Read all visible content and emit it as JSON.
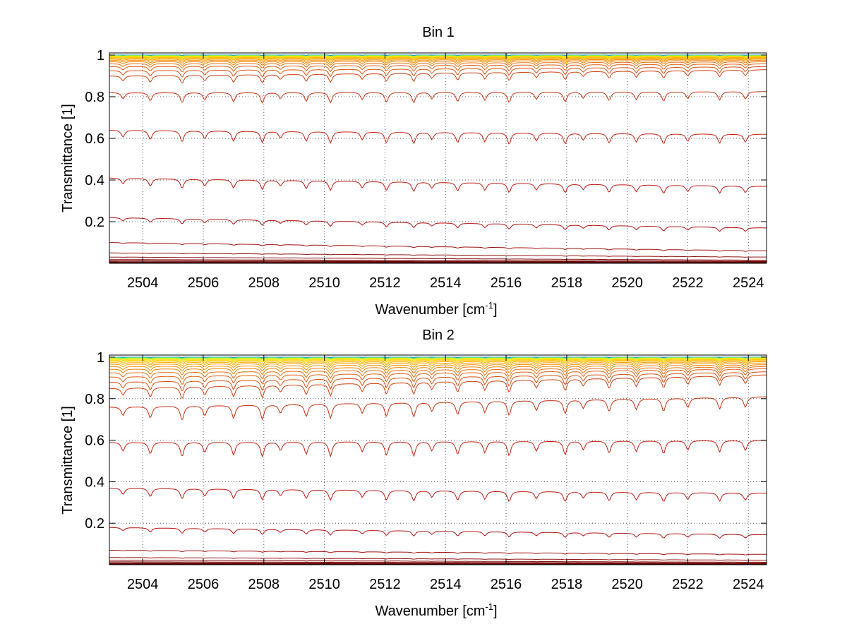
{
  "chart_data": [
    {
      "type": "line",
      "title": "Bin 1",
      "xlabel": "Wavenumber [cm",
      "xlabel_sup": "-1",
      "xlabel_end": "]",
      "ylabel": "Transmittance [1]",
      "xlim": [
        2502.9,
        2524.6
      ],
      "ylim": [
        0.0,
        1.01
      ],
      "xticks": [
        "2504",
        "2506",
        "2508",
        "2510",
        "2512",
        "2514",
        "2516",
        "2518",
        "2520",
        "2522",
        "2524"
      ],
      "yticks": [
        "0.2",
        "0.4",
        "0.6",
        "0.8",
        "1"
      ],
      "grid": true,
      "legend": "none",
      "series_count": 36,
      "series_levels": [
        {
          "start": 1.0,
          "end": 1.0,
          "depth": 0.002,
          "color": "#00308f"
        },
        {
          "start": 1.0,
          "end": 1.0,
          "depth": 0.002,
          "color": "#0060c0"
        },
        {
          "start": 0.999,
          "end": 0.999,
          "depth": 0.002,
          "color": "#0090e0"
        },
        {
          "start": 0.999,
          "end": 0.999,
          "depth": 0.003,
          "color": "#10b8d8"
        },
        {
          "start": 0.998,
          "end": 0.998,
          "depth": 0.003,
          "color": "#30d0b0"
        },
        {
          "start": 0.998,
          "end": 0.998,
          "depth": 0.003,
          "color": "#60e080"
        },
        {
          "start": 0.997,
          "end": 0.997,
          "depth": 0.003,
          "color": "#90ee50"
        },
        {
          "start": 0.996,
          "end": 0.996,
          "depth": 0.004,
          "color": "#c0f030"
        },
        {
          "start": 0.995,
          "end": 0.995,
          "depth": 0.004,
          "color": "#e8f020"
        },
        {
          "start": 0.993,
          "end": 0.994,
          "depth": 0.005,
          "color": "#f8e000"
        },
        {
          "start": 0.991,
          "end": 0.992,
          "depth": 0.006,
          "color": "#ffd000"
        },
        {
          "start": 0.988,
          "end": 0.99,
          "depth": 0.008,
          "color": "#ffc000"
        },
        {
          "start": 0.985,
          "end": 0.987,
          "depth": 0.01,
          "color": "#ffb000"
        },
        {
          "start": 0.98,
          "end": 0.984,
          "depth": 0.012,
          "color": "#ffa000"
        },
        {
          "start": 0.975,
          "end": 0.98,
          "depth": 0.015,
          "color": "#f89000"
        },
        {
          "start": 0.968,
          "end": 0.975,
          "depth": 0.018,
          "color": "#f08000"
        },
        {
          "start": 0.958,
          "end": 0.968,
          "depth": 0.022,
          "color": "#e87010"
        },
        {
          "start": 0.945,
          "end": 0.958,
          "depth": 0.028,
          "color": "#e06010"
        },
        {
          "start": 0.925,
          "end": 0.945,
          "depth": 0.034,
          "color": "#d85010"
        },
        {
          "start": 0.9,
          "end": 0.93,
          "depth": 0.04,
          "color": "#d04010"
        },
        {
          "start": 0.82,
          "end": 0.825,
          "depth": 0.05,
          "color": "#c83010"
        },
        {
          "start": 0.64,
          "end": 0.62,
          "depth": 0.055,
          "color": "#c82010"
        },
        {
          "start": 0.41,
          "end": 0.37,
          "depth": 0.045,
          "color": "#c01810"
        },
        {
          "start": 0.22,
          "end": 0.17,
          "depth": 0.025,
          "color": "#b01010"
        },
        {
          "start": 0.1,
          "end": 0.06,
          "depth": 0.006,
          "color": "#a01010"
        },
        {
          "start": 0.05,
          "end": 0.03,
          "depth": 0.002,
          "color": "#901010"
        },
        {
          "start": 0.03,
          "end": 0.015,
          "depth": 0.001,
          "color": "#881010"
        },
        {
          "start": 0.018,
          "end": 0.01,
          "depth": 0.0,
          "color": "#801010"
        },
        {
          "start": 0.012,
          "end": 0.007,
          "depth": 0.0,
          "color": "#780808"
        },
        {
          "start": 0.008,
          "end": 0.005,
          "depth": 0.0,
          "color": "#700808"
        },
        {
          "start": 0.005,
          "end": 0.004,
          "depth": 0.0,
          "color": "#680404"
        },
        {
          "start": 0.004,
          "end": 0.003,
          "depth": 0.0,
          "color": "#600404"
        },
        {
          "start": 0.003,
          "end": 0.002,
          "depth": 0.0,
          "color": "#600000"
        },
        {
          "start": 0.002,
          "end": 0.002,
          "depth": 0.0,
          "color": "#580000"
        },
        {
          "start": 0.001,
          "end": 0.001,
          "depth": 0.0,
          "color": "#580000"
        },
        {
          "start": 0.001,
          "end": 0.001,
          "depth": 0.0,
          "color": "#500000"
        }
      ]
    },
    {
      "type": "line",
      "title": "Bin 2",
      "xlabel": "Wavenumber [cm",
      "xlabel_sup": "-1",
      "xlabel_end": "]",
      "ylabel": "Transmittance [1]",
      "xlim": [
        2502.9,
        2524.6
      ],
      "ylim": [
        0.0,
        1.01
      ],
      "xticks": [
        "2504",
        "2506",
        "2508",
        "2510",
        "2512",
        "2514",
        "2516",
        "2518",
        "2520",
        "2522",
        "2524"
      ],
      "yticks": [
        "0.2",
        "0.4",
        "0.6",
        "0.8",
        "1"
      ],
      "grid": true,
      "legend": "none",
      "series_count": 36,
      "series_levels": [
        {
          "start": 1.0,
          "end": 1.0,
          "depth": 0.002,
          "color": "#00308f"
        },
        {
          "start": 1.0,
          "end": 1.0,
          "depth": 0.002,
          "color": "#0060c0"
        },
        {
          "start": 0.999,
          "end": 0.999,
          "depth": 0.002,
          "color": "#0090e0"
        },
        {
          "start": 0.999,
          "end": 0.999,
          "depth": 0.003,
          "color": "#10b8d8"
        },
        {
          "start": 0.998,
          "end": 0.998,
          "depth": 0.003,
          "color": "#30d0b0"
        },
        {
          "start": 0.997,
          "end": 0.998,
          "depth": 0.004,
          "color": "#60e080"
        },
        {
          "start": 0.996,
          "end": 0.997,
          "depth": 0.004,
          "color": "#90ee50"
        },
        {
          "start": 0.994,
          "end": 0.996,
          "depth": 0.005,
          "color": "#c0f030"
        },
        {
          "start": 0.992,
          "end": 0.995,
          "depth": 0.006,
          "color": "#e8f020"
        },
        {
          "start": 0.989,
          "end": 0.993,
          "depth": 0.008,
          "color": "#f8e000"
        },
        {
          "start": 0.985,
          "end": 0.99,
          "depth": 0.01,
          "color": "#ffd000"
        },
        {
          "start": 0.98,
          "end": 0.987,
          "depth": 0.013,
          "color": "#ffc000"
        },
        {
          "start": 0.974,
          "end": 0.983,
          "depth": 0.016,
          "color": "#ffb000"
        },
        {
          "start": 0.966,
          "end": 0.978,
          "depth": 0.02,
          "color": "#ffa000"
        },
        {
          "start": 0.955,
          "end": 0.972,
          "depth": 0.025,
          "color": "#f89000"
        },
        {
          "start": 0.942,
          "end": 0.964,
          "depth": 0.03,
          "color": "#f08000"
        },
        {
          "start": 0.925,
          "end": 0.955,
          "depth": 0.036,
          "color": "#e87010"
        },
        {
          "start": 0.905,
          "end": 0.945,
          "depth": 0.042,
          "color": "#e06010"
        },
        {
          "start": 0.88,
          "end": 0.93,
          "depth": 0.05,
          "color": "#d85010"
        },
        {
          "start": 0.85,
          "end": 0.915,
          "depth": 0.058,
          "color": "#d04010"
        },
        {
          "start": 0.76,
          "end": 0.81,
          "depth": 0.07,
          "color": "#c83010"
        },
        {
          "start": 0.59,
          "end": 0.6,
          "depth": 0.07,
          "color": "#c82010"
        },
        {
          "start": 0.37,
          "end": 0.345,
          "depth": 0.05,
          "color": "#c01810"
        },
        {
          "start": 0.18,
          "end": 0.145,
          "depth": 0.025,
          "color": "#b01010"
        },
        {
          "start": 0.07,
          "end": 0.05,
          "depth": 0.005,
          "color": "#a01010"
        },
        {
          "start": 0.035,
          "end": 0.022,
          "depth": 0.002,
          "color": "#901010"
        },
        {
          "start": 0.022,
          "end": 0.012,
          "depth": 0.001,
          "color": "#881010"
        },
        {
          "start": 0.014,
          "end": 0.008,
          "depth": 0.0,
          "color": "#801010"
        },
        {
          "start": 0.009,
          "end": 0.006,
          "depth": 0.0,
          "color": "#780808"
        },
        {
          "start": 0.006,
          "end": 0.004,
          "depth": 0.0,
          "color": "#700808"
        },
        {
          "start": 0.004,
          "end": 0.003,
          "depth": 0.0,
          "color": "#680404"
        },
        {
          "start": 0.003,
          "end": 0.002,
          "depth": 0.0,
          "color": "#600404"
        },
        {
          "start": 0.002,
          "end": 0.002,
          "depth": 0.0,
          "color": "#600000"
        },
        {
          "start": 0.002,
          "end": 0.001,
          "depth": 0.0,
          "color": "#580000"
        },
        {
          "start": 0.001,
          "end": 0.001,
          "depth": 0.0,
          "color": "#580000"
        },
        {
          "start": 0.001,
          "end": 0.001,
          "depth": 0.0,
          "color": "#500000"
        }
      ]
    }
  ]
}
